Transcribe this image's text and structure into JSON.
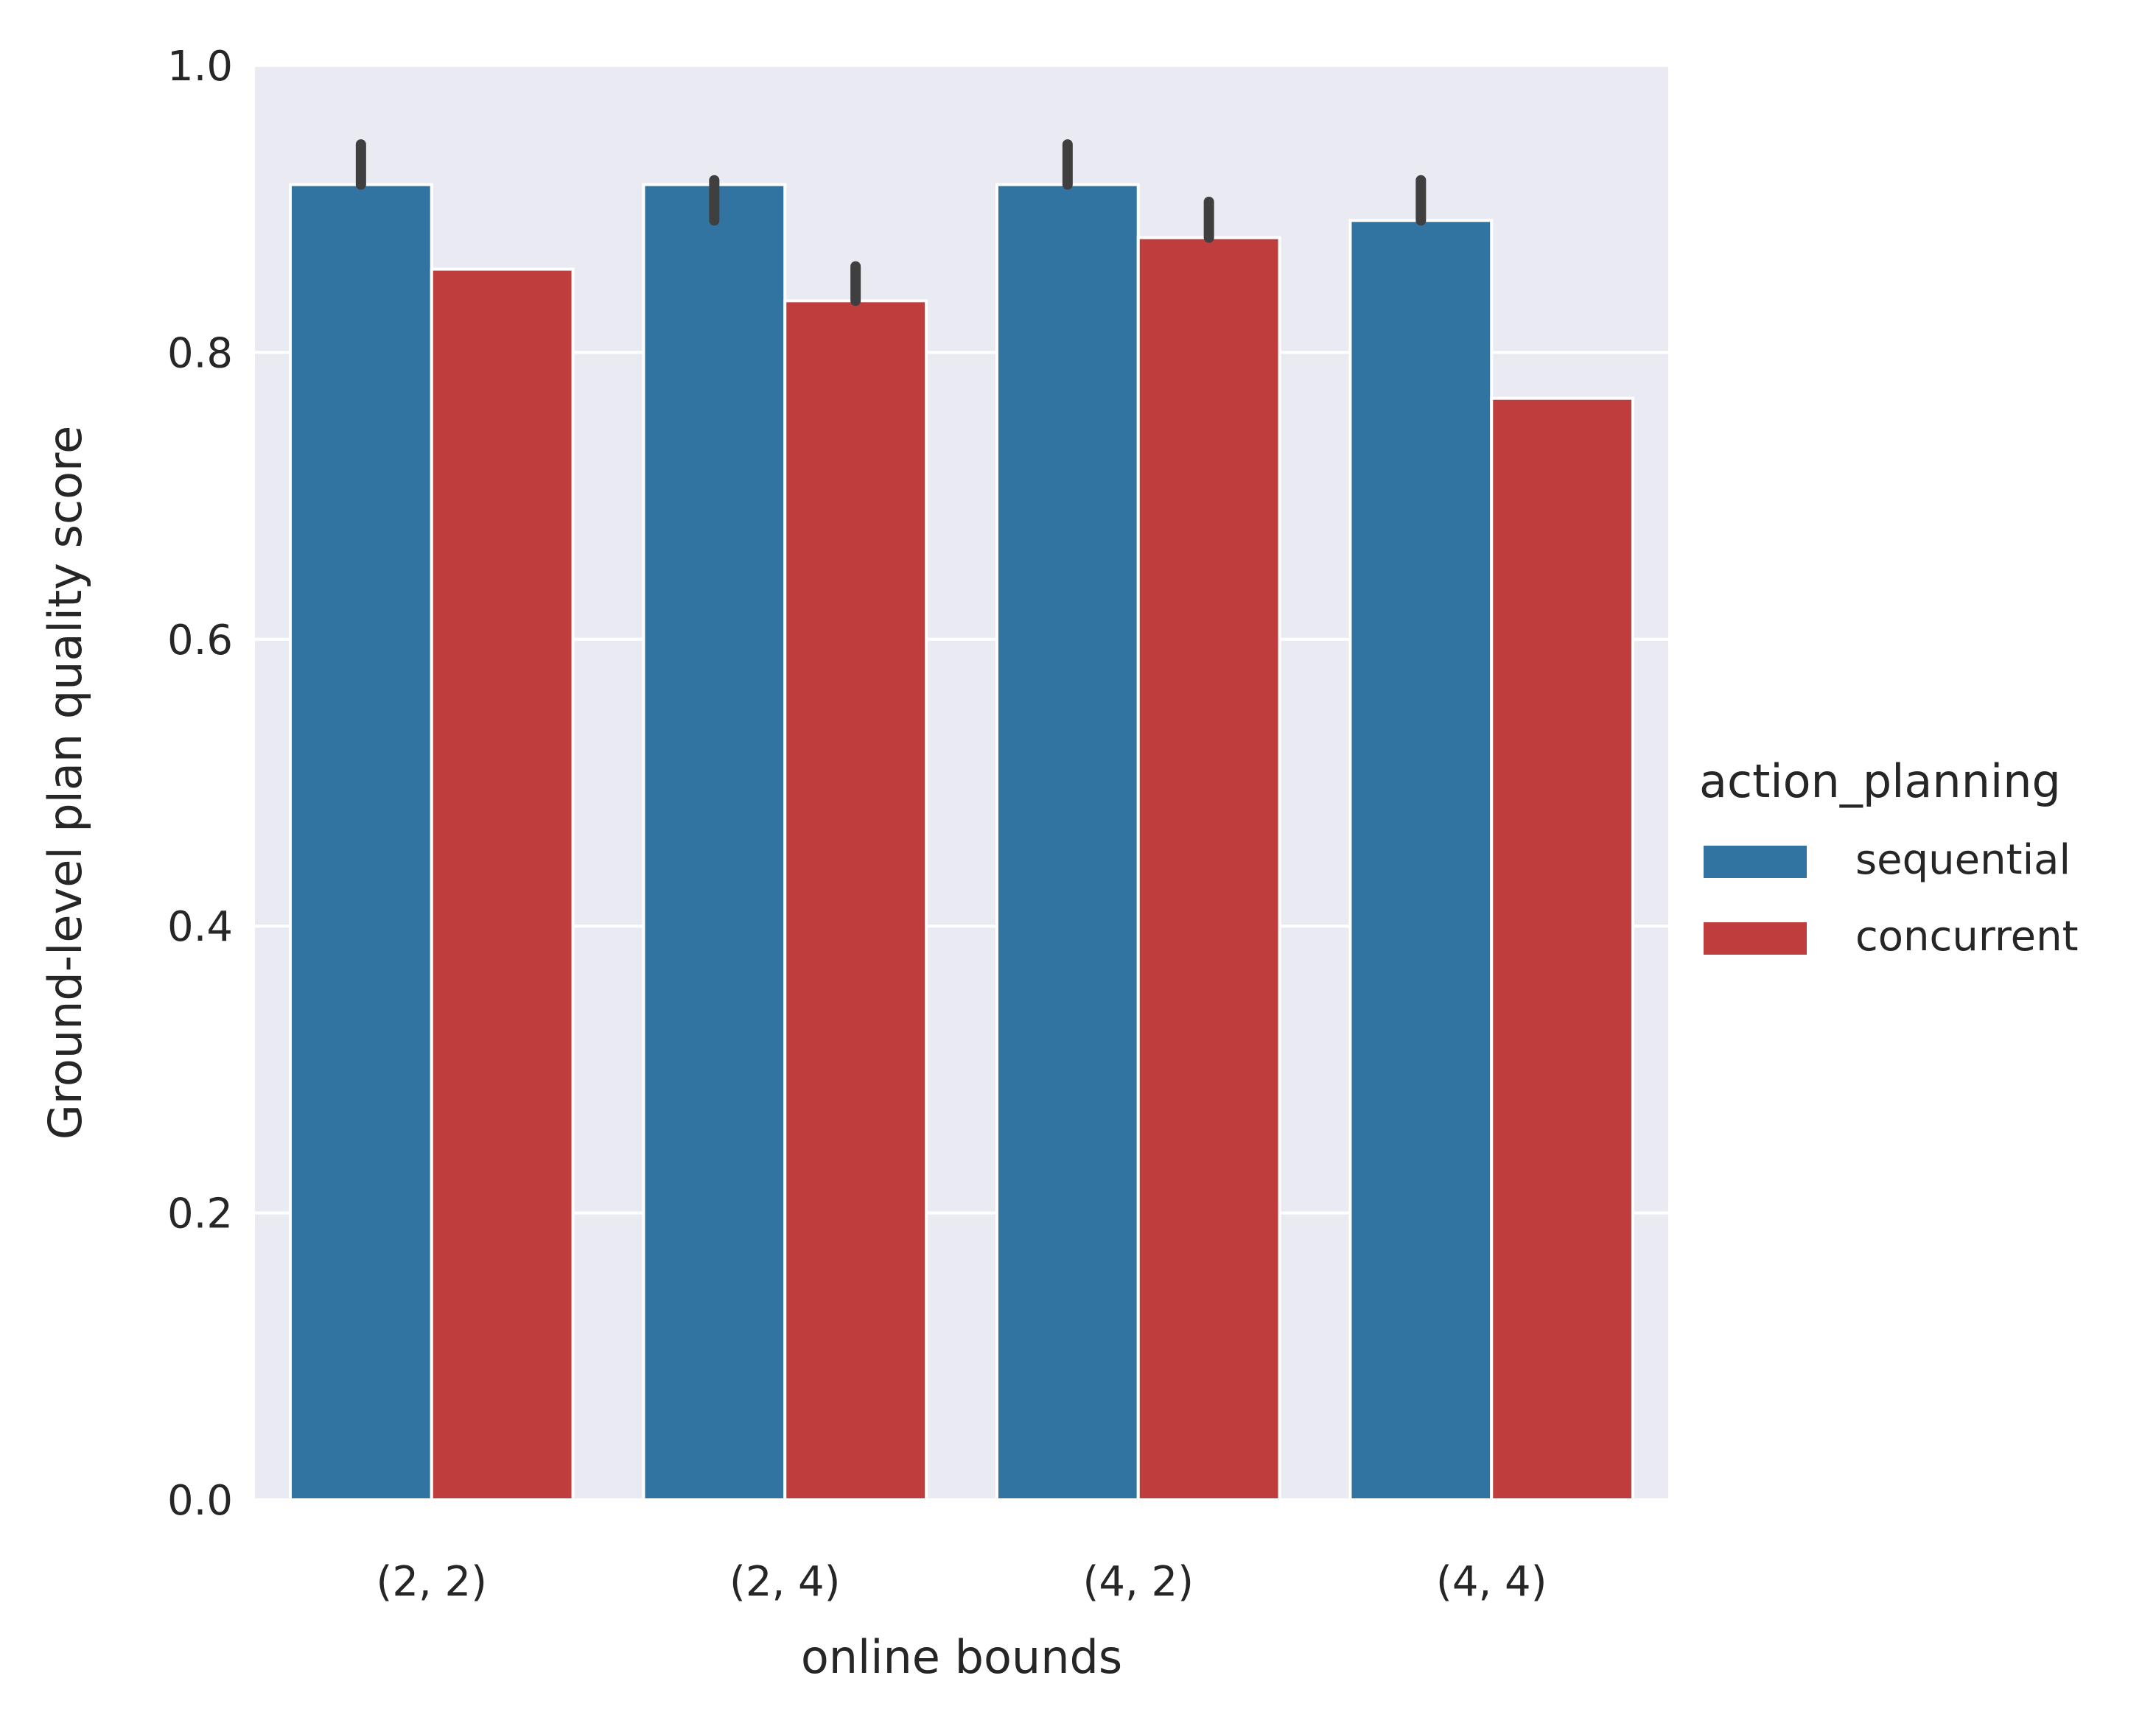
{
  "chart_data": {
    "type": "bar",
    "title": "",
    "xlabel": "online bounds",
    "ylabel": "Ground-level plan quality score",
    "categories": [
      "(2, 2)",
      "(2, 4)",
      "(4, 2)",
      "(4, 4)"
    ],
    "ylim": [
      0,
      1.0
    ],
    "yticks": [
      0.0,
      0.2,
      0.4,
      0.6,
      0.8,
      1.0
    ],
    "ytick_labels": [
      "0.0",
      "0.2",
      "0.4",
      "0.6",
      "0.8",
      "1.0"
    ],
    "grid": true,
    "legend": {
      "title": "action_planning",
      "placement": "right"
    },
    "series": [
      {
        "name": "sequential",
        "color": "#3274a1",
        "values": [
          0.917,
          0.917,
          0.917,
          0.892
        ],
        "error_low": [
          0.917,
          0.892,
          0.917,
          0.892
        ],
        "error_high": [
          0.945,
          0.92,
          0.945,
          0.92
        ]
      },
      {
        "name": "concurrent",
        "color": "#c03d3e",
        "values": [
          0.858,
          0.836,
          0.88,
          0.768
        ],
        "error_low": [
          null,
          0.836,
          0.88,
          null
        ],
        "error_high": [
          null,
          0.86,
          0.905,
          null
        ]
      }
    ],
    "background_color": "#eaeaf2",
    "errorbar_color": "#3f3f3f"
  }
}
